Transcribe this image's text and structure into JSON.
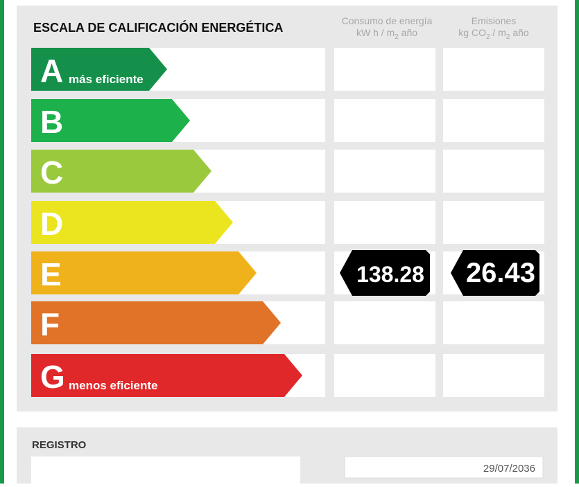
{
  "header": {
    "title": "ESCALA DE CALIFICACIÓN ENERGÉTICA",
    "columns": [
      {
        "title": "Consumo de energía",
        "unit": [
          "kW h / m",
          "2",
          " año"
        ]
      },
      {
        "title": "Emisiones",
        "unit": [
          "kg CO",
          "2",
          " / m",
          "2",
          " año"
        ]
      }
    ]
  },
  "scale": {
    "rows": [
      {
        "letter": "A",
        "note": "más eficiente",
        "color": "#14904a"
      },
      {
        "letter": "B",
        "color": "#1db14b"
      },
      {
        "letter": "C",
        "color": "#9bc93d"
      },
      {
        "letter": "D",
        "color": "#ebe520"
      },
      {
        "letter": "E",
        "color": "#f0b21b",
        "consumption": 138.28,
        "emissions": 26.43
      },
      {
        "letter": "F",
        "color": "#e07327"
      },
      {
        "letter": "G",
        "note": "menos eficiente",
        "color": "#e0282a"
      }
    ]
  },
  "registro": {
    "title": "REGISTRO",
    "date": "29/07/2036"
  }
}
